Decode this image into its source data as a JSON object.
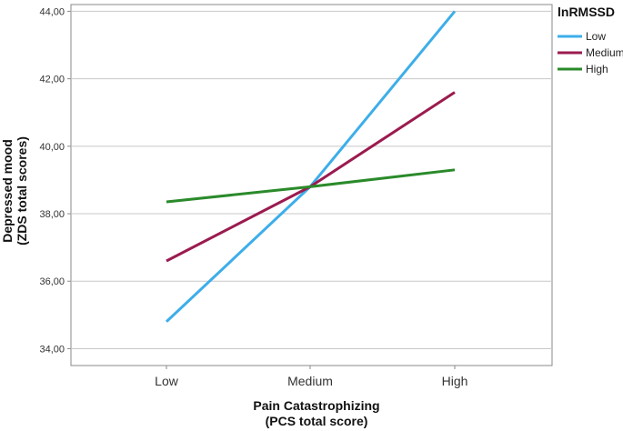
{
  "chart_data": {
    "type": "line",
    "title": "",
    "xlabel_line1": "Pain Catastrophizing",
    "xlabel_line2": "(PCS total score)",
    "ylabel_line1": "Depressed mood",
    "ylabel_line2": "(ZDS total scores)",
    "categories": [
      "Low",
      "Medium",
      "High"
    ],
    "ylim": [
      33.5,
      44.2
    ],
    "yticks": [
      34,
      36,
      38,
      40,
      42,
      44
    ],
    "ytick_labels": [
      "34,00",
      "36,00",
      "38,00",
      "40,00",
      "42,00",
      "44,00"
    ],
    "grid": true,
    "legend_title": "lnRMSSD",
    "legend_position": "top-right",
    "series": [
      {
        "name": "Low",
        "color": "#3daee9",
        "values": [
          34.8,
          38.8,
          44.0
        ]
      },
      {
        "name": "Medium",
        "color": "#9b1b4f",
        "values": [
          36.6,
          38.8,
          41.6
        ]
      },
      {
        "name": "High",
        "color": "#2a8a2a",
        "values": [
          38.35,
          38.8,
          39.3
        ]
      }
    ]
  }
}
